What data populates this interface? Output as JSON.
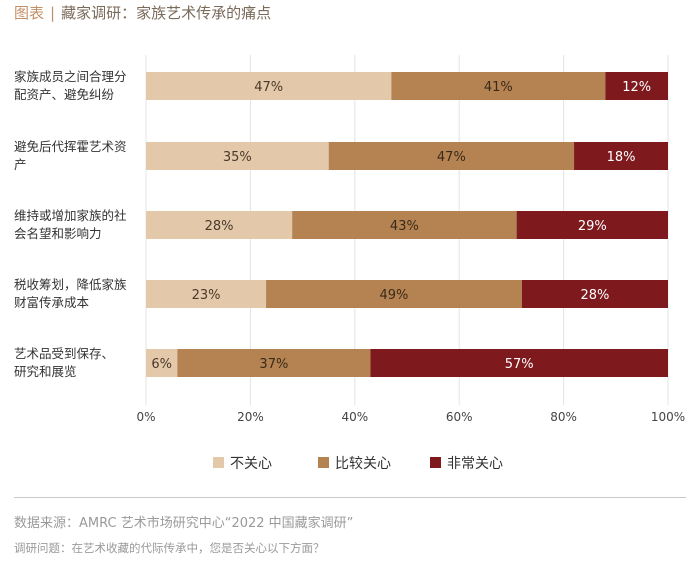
{
  "header": {
    "tag": "图表",
    "separator": "|",
    "title": "藏家调研：家族艺术传承的痛点"
  },
  "chart_data": {
    "type": "bar",
    "orientation": "horizontal",
    "stacked": true,
    "categories": [
      [
        "家族成员之间合理分",
        "配资产、避免纠纷"
      ],
      [
        "避免后代挥霍艺术资",
        "产"
      ],
      [
        "维持或增加家族的社",
        "会名望和影响力"
      ],
      [
        "税收筹划，降低家族",
        "财富传承成本"
      ],
      [
        "艺术品受到保存、",
        "研究和展览"
      ]
    ],
    "series": [
      {
        "name": "不关心",
        "values": [
          47,
          35,
          28,
          23,
          6
        ],
        "color": "#e3c8aa",
        "text_color": "#4a3a2a"
      },
      {
        "name": "比较关心",
        "values": [
          41,
          47,
          43,
          49,
          37
        ],
        "color": "#b58252",
        "text_color": "#3a2a1a"
      },
      {
        "name": "非常关心",
        "values": [
          12,
          18,
          29,
          28,
          57
        ],
        "color": "#7e1a1e",
        "text_color": "#ffffff"
      }
    ],
    "value_suffix": "%",
    "xlim": [
      0,
      100
    ],
    "xticks": [
      "0%",
      "20%",
      "40%",
      "60%",
      "80%",
      "100%"
    ],
    "grid": true,
    "legend_position": "bottom"
  },
  "footer": {
    "source": "数据来源：AMRC 艺术市场研究中心“2022 中国藏家调研”",
    "question": "调研问题：在艺术收藏的代际传承中，您是否关心以下方面？"
  }
}
